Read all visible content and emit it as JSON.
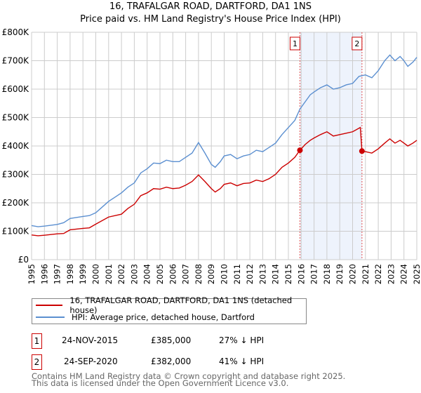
{
  "chart_data": {
    "type": "line",
    "title": "16, TRAFALGAR ROAD, DARTFORD, DA1 1NS",
    "subtitle": "Price paid vs. HM Land Registry's House Price Index (HPI)",
    "xlim": [
      1995,
      2025
    ],
    "ylim": [
      0,
      800000
    ],
    "x_ticks": [
      "1995",
      "1996",
      "1997",
      "1998",
      "1999",
      "2000",
      "2001",
      "2002",
      "2003",
      "2004",
      "2005",
      "2006",
      "2007",
      "2008",
      "2009",
      "2010",
      "2011",
      "2012",
      "2013",
      "2014",
      "2015",
      "2016",
      "2017",
      "2018",
      "2019",
      "2020",
      "2021",
      "2022",
      "2023",
      "2024",
      "2025"
    ],
    "y_ticks": [
      {
        "v": 0,
        "label": "£0"
      },
      {
        "v": 100000,
        "label": "£100K"
      },
      {
        "v": 200000,
        "label": "£200K"
      },
      {
        "v": 300000,
        "label": "£300K"
      },
      {
        "v": 400000,
        "label": "£400K"
      },
      {
        "v": 500000,
        "label": "£500K"
      },
      {
        "v": 600000,
        "label": "£600K"
      },
      {
        "v": 700000,
        "label": "£700K"
      },
      {
        "v": 800000,
        "label": "£800K"
      }
    ],
    "grid": true,
    "series": [
      {
        "name": "16, TRAFALGAR ROAD, DARTFORD, DA1 1NS (detached house)",
        "color": "#cc0000",
        "x": [
          1995,
          1995.5,
          1996,
          1997,
          1997.5,
          1998,
          1999,
          1999.5,
          2000,
          2001,
          2002,
          2002.5,
          2003,
          2003.5,
          2004,
          2004.5,
          2005,
          2005.5,
          2006,
          2006.5,
          2007,
          2007.5,
          2008,
          2008.5,
          2009,
          2009.3,
          2009.7,
          2010,
          2010.5,
          2011,
          2011.5,
          2012,
          2012.5,
          2013,
          2013.5,
          2014,
          2014.5,
          2015,
          2015.5,
          2015.9,
          2016.3,
          2016.7,
          2017,
          2017.5,
          2018,
          2018.5,
          2019,
          2019.5,
          2020,
          2020.6,
          2020.73,
          2021,
          2021.5,
          2022,
          2022.5,
          2022.9,
          2023.3,
          2023.7,
          2024,
          2024.3,
          2024.7,
          2025
        ],
        "y": [
          87000,
          84000,
          86000,
          91000,
          92000,
          105000,
          110000,
          112000,
          125000,
          150000,
          160000,
          180000,
          195000,
          225000,
          235000,
          250000,
          248000,
          255000,
          250000,
          252000,
          262000,
          275000,
          298000,
          275000,
          250000,
          238000,
          250000,
          265000,
          270000,
          260000,
          268000,
          270000,
          280000,
          275000,
          285000,
          300000,
          325000,
          340000,
          360000,
          385000,
          405000,
          420000,
          428000,
          440000,
          450000,
          435000,
          440000,
          445000,
          450000,
          465000,
          382000,
          380000,
          375000,
          390000,
          410000,
          425000,
          410000,
          420000,
          410000,
          400000,
          410000,
          420000
        ]
      },
      {
        "name": "HPI: Average price, detached house, Dartford",
        "color": "#5b8fd0",
        "x": [
          1995,
          1995.5,
          1996,
          1997,
          1997.5,
          1998,
          1999,
          1999.5,
          2000,
          2000.5,
          2001,
          2001.5,
          2002,
          2002.5,
          2003,
          2003.5,
          2004,
          2004.5,
          2005,
          2005.5,
          2006,
          2006.5,
          2007,
          2007.5,
          2008,
          2008.5,
          2009,
          2009.3,
          2009.7,
          2010,
          2010.5,
          2011,
          2011.5,
          2012,
          2012.5,
          2013,
          2013.5,
          2014,
          2014.5,
          2015,
          2015.5,
          2015.9,
          2016.3,
          2016.7,
          2017,
          2017.5,
          2018,
          2018.5,
          2019,
          2019.5,
          2020,
          2020.5,
          2021,
          2021.5,
          2022,
          2022.5,
          2022.9,
          2023.3,
          2023.7,
          2024,
          2024.3,
          2024.7,
          2025
        ],
        "y": [
          120000,
          116000,
          118000,
          124000,
          130000,
          145000,
          152000,
          155000,
          165000,
          185000,
          205000,
          220000,
          235000,
          255000,
          270000,
          305000,
          320000,
          340000,
          338000,
          350000,
          345000,
          345000,
          360000,
          375000,
          412000,
          375000,
          335000,
          325000,
          345000,
          365000,
          370000,
          355000,
          365000,
          370000,
          385000,
          380000,
          395000,
          410000,
          440000,
          465000,
          490000,
          530000,
          555000,
          580000,
          590000,
          605000,
          615000,
          600000,
          605000,
          615000,
          620000,
          645000,
          650000,
          640000,
          665000,
          700000,
          720000,
          700000,
          715000,
          700000,
          680000,
          695000,
          712000
        ]
      }
    ],
    "sales": [
      {
        "id": "1",
        "x": 2015.9,
        "y": 385000
      },
      {
        "id": "2",
        "x": 2020.73,
        "y": 382000
      }
    ],
    "shaded_range": [
      2015.9,
      2020.73
    ]
  },
  "legend": {
    "items": [
      "16, TRAFALGAR ROAD, DARTFORD, DA1 1NS (detached house)",
      "HPI: Average price, detached house, Dartford"
    ]
  },
  "transactions": [
    {
      "id": "1",
      "date": "24-NOV-2015",
      "price": "£385,000",
      "hpi": "27% ↓ HPI"
    },
    {
      "id": "2",
      "date": "24-SEP-2020",
      "price": "£382,000",
      "hpi": "41% ↓ HPI"
    }
  ],
  "footer": [
    "Contains HM Land Registry data © Crown copyright and database right 2025.",
    "This data is licensed under the Open Government Licence v3.0."
  ]
}
